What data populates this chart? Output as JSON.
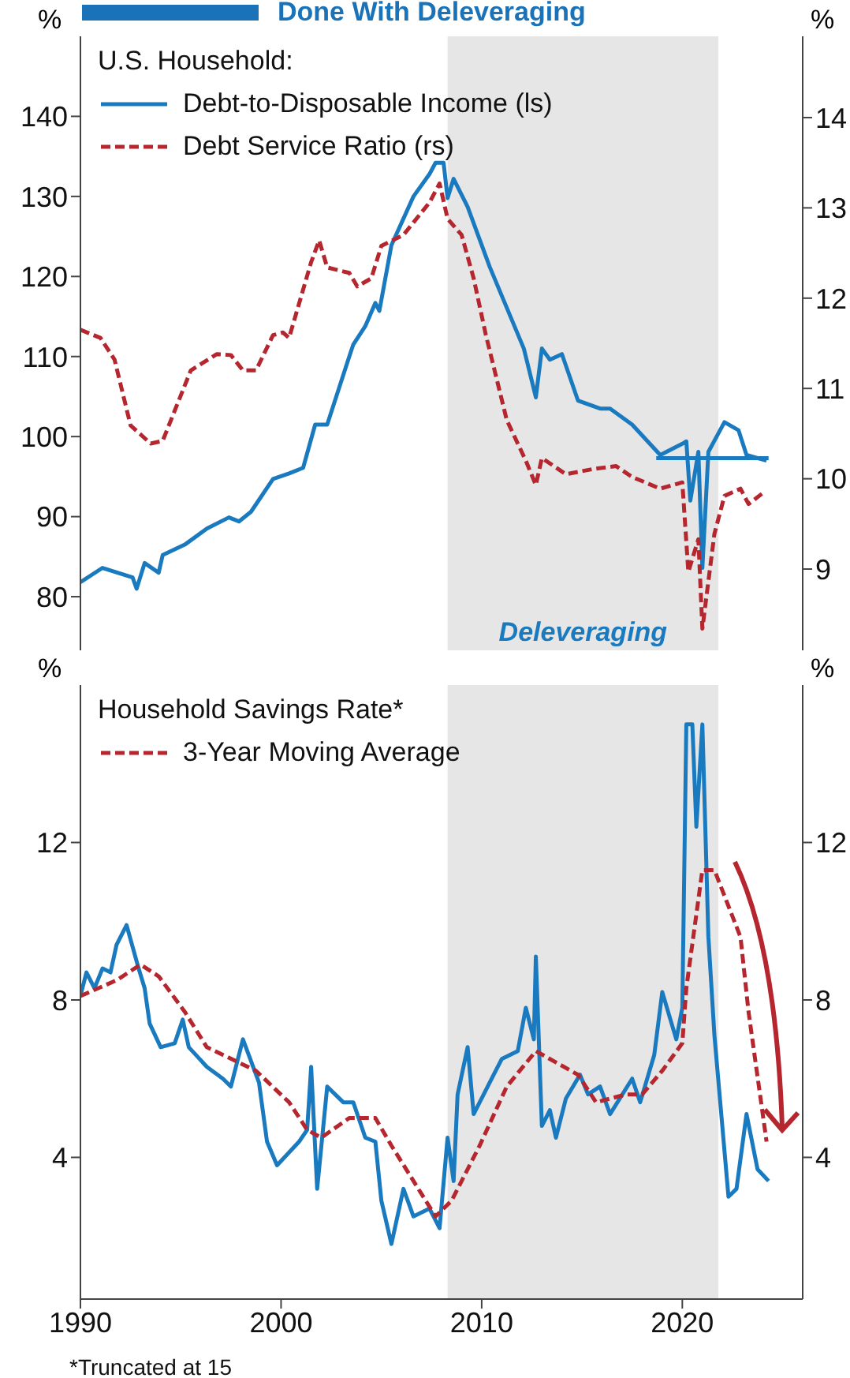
{
  "chart_data": [
    {
      "type": "line",
      "title": "Done With Deleveraging",
      "ylabel": "%",
      "y2label": "%",
      "legend_title": "U.S. Household:",
      "legend": "top left",
      "marker": "none",
      "tick_labels": "y",
      "xlim": [
        1990,
        2026
      ],
      "ylim": [
        73.3,
        150
      ],
      "yticks": [
        80,
        90,
        100,
        110,
        120,
        130,
        140
      ],
      "y2lim": [
        8.1,
        14.9
      ],
      "y2ticks": [
        9,
        10,
        11,
        12,
        13,
        14
      ],
      "bands": [
        {
          "axis": "x",
          "from": 2008.3,
          "to": 2021.8,
          "label": "Deleveraging",
          "color": "#e6e6e6"
        }
      ],
      "series": [
        {
          "name": "Debt-to-Disposable Income (ls)",
          "color": "#1a7abf",
          "line_style": "solid",
          "x": [
            1990,
            1991.1,
            1992.6,
            1992.8,
            1993.2,
            1993.9,
            1994.1,
            1995.2,
            1996.3,
            1997.4,
            1997.9,
            1998.5,
            1999.6,
            2000.4,
            2001.1,
            2001.7,
            2002.3,
            2003.4,
            2003.6,
            2004.2,
            2004.7,
            2004.9,
            2005.5,
            2006.6,
            2007.4,
            2007.7,
            2008.1,
            2008.3,
            2008.6,
            2009.3,
            2010.4,
            2012.1,
            2012.7,
            2013,
            2013.4,
            2014,
            2014.8,
            2015.9,
            2016.4,
            2017.5,
            2018.9,
            2020,
            2020.2,
            2020.4,
            2020.8,
            2021,
            2021.3,
            2022.1,
            2022.8,
            2023.2,
            2024.2
          ],
          "values": [
            81.8,
            83.6,
            82.4,
            81,
            84.2,
            83,
            85.2,
            86.5,
            88.5,
            89.9,
            89.4,
            90.6,
            94.7,
            95.4,
            96.1,
            101.5,
            101.5,
            110,
            111.5,
            113.8,
            116.7,
            115.7,
            123.9,
            130,
            132.8,
            134.2,
            134.2,
            129.8,
            132.2,
            128.7,
            121.2,
            111,
            104.9,
            111,
            109.6,
            110.3,
            104.5,
            103.5,
            103.5,
            101.5,
            97.7,
            99.1,
            99.4,
            92,
            98.1,
            83.6,
            98.1,
            101.8,
            100.8,
            97.7,
            97
          ]
        },
        {
          "color": "#1a7abf",
          "line_style": "solid",
          "x": [
            2018.7,
            2024.3
          ],
          "values": [
            97.3,
            97.3
          ]
        },
        {
          "name": "Debt Service Ratio (rs)",
          "color": "#b5262e",
          "line_style": "dashed",
          "axis": "y2",
          "x": [
            1990,
            1991,
            1991.7,
            1992.5,
            1993.5,
            1994.1,
            1995.5,
            1996.8,
            1997.5,
            1998.1,
            1998.75,
            1999.6,
            2000.1,
            2000.4,
            2001.5,
            2001.9,
            2002.3,
            2003.4,
            2003.8,
            2004.5,
            2005,
            2006.1,
            2007.4,
            2007.9,
            2008.3,
            2009,
            2009.6,
            2010.2,
            2011.25,
            2012.2,
            2012.7,
            2013,
            2014.2,
            2015.6,
            2016.7,
            2017.5,
            2018.9,
            2020,
            2020.3,
            2020.8,
            2021,
            2021.6,
            2022.1,
            2022.9,
            2023.3,
            2024
          ],
          "values": [
            11.65,
            11.56,
            11.32,
            10.59,
            10.39,
            10.42,
            11.2,
            11.38,
            11.37,
            11.2,
            11.2,
            11.59,
            11.62,
            11.56,
            12.4,
            12.64,
            12.34,
            12.28,
            12.13,
            12.22,
            12.58,
            12.7,
            13.06,
            13.27,
            12.88,
            12.7,
            12.22,
            11.6,
            10.65,
            10.2,
            9.93,
            10.23,
            10.05,
            10.11,
            10.14,
            10.02,
            9.89,
            9.96,
            8.97,
            9.33,
            8.34,
            9.39,
            9.81,
            9.89,
            9.72,
            9.84
          ]
        }
      ]
    },
    {
      "type": "line",
      "ylabel": "%",
      "y2label": "%",
      "legend_title": "Household Savings Rate*",
      "legend": "top left",
      "marker": "none",
      "xlim": [
        1990,
        2026
      ],
      "xticks": [
        1990,
        2000,
        2010,
        2020
      ],
      "ylim": [
        0.4,
        16
      ],
      "yticks": [
        4,
        8,
        12
      ],
      "y2lim": [
        0.4,
        16
      ],
      "y2ticks": [
        4,
        8,
        12
      ],
      "bands": [
        {
          "axis": "x",
          "from": 2008.3,
          "to": 2021.8,
          "color": "#e6e6e6"
        }
      ],
      "annotations": [
        "*Truncated at 15"
      ],
      "series": [
        {
          "color": "#1a7abf",
          "line_style": "solid",
          "x": [
            1990,
            1990.3,
            1990.7,
            1991.1,
            1991.5,
            1991.8,
            1992.3,
            1992.9,
            1993.2,
            1993.45,
            1994,
            1994.7,
            1995.1,
            1995.4,
            1996.3,
            1997.1,
            1997.5,
            1998.1,
            1998.9,
            1999.3,
            1999.8,
            2000.9,
            2001.3,
            2001.5,
            2001.8,
            2002.3,
            2003.1,
            2003.6,
            2004.2,
            2004.7,
            2005,
            2005.5,
            2006.1,
            2006.6,
            2007.4,
            2007.9,
            2008.3,
            2008.6,
            2008.8,
            2009.3,
            2009.6,
            2010.3,
            2010.6,
            2011,
            2011.8,
            2012.2,
            2012.6,
            2012.7,
            2013,
            2013.4,
            2013.7,
            2014.2,
            2014.9,
            2015.3,
            2015.9,
            2016.4,
            2017.5,
            2017.9,
            2018.6,
            2019,
            2019.7,
            2020,
            2020.2,
            2020.5,
            2020.7,
            2021,
            2021.3,
            2021.6,
            2022.3,
            2022.7,
            2023.2,
            2023.75,
            2024.3
          ],
          "values": [
            8.1,
            8.7,
            8.3,
            8.8,
            8.7,
            9.4,
            9.9,
            8.8,
            8.3,
            7.4,
            6.8,
            6.9,
            7.5,
            6.8,
            6.3,
            6,
            5.8,
            7,
            5.9,
            4.4,
            3.8,
            4.4,
            4.7,
            6.3,
            3.2,
            5.8,
            5.4,
            5.4,
            4.5,
            4.4,
            2.9,
            1.8,
            3.2,
            2.5,
            2.7,
            2.2,
            4.5,
            3.4,
            5.6,
            6.8,
            5.1,
            5.8,
            6.1,
            6.5,
            6.7,
            7.8,
            7,
            9.1,
            4.8,
            5.2,
            4.5,
            5.5,
            6.1,
            5.6,
            5.8,
            5.1,
            6,
            5.4,
            6.6,
            8.2,
            7,
            7.8,
            15,
            15,
            12.4,
            15,
            9.6,
            7.1,
            3,
            3.2,
            5.1,
            3.7,
            3.4
          ]
        },
        {
          "name": "3-Year Moving Average",
          "color": "#b5262e",
          "line_style": "dashed",
          "x": [
            1990,
            1990.9,
            1991.8,
            1993,
            1993.9,
            1995.2,
            1996.3,
            1998.75,
            2000.4,
            2001.3,
            2002,
            2003.4,
            2004.7,
            2005.5,
            2007.7,
            2008.5,
            2009.9,
            2011.25,
            2012.7,
            2014.8,
            2015.7,
            2017.2,
            2018,
            2019,
            2020,
            2020.2,
            2021,
            2021.6,
            2022.9,
            2023.3,
            2023.9,
            2024.2
          ],
          "values": [
            8.1,
            8.3,
            8.5,
            8.9,
            8.6,
            7.7,
            6.8,
            6.2,
            5.4,
            4.7,
            4.5,
            5,
            5,
            4.3,
            2.5,
            2.9,
            4.3,
            5.8,
            6.7,
            6.1,
            5.4,
            5.6,
            5.6,
            6.2,
            6.9,
            8.3,
            11.3,
            11.3,
            9.6,
            7.7,
            5.5,
            4.4
          ]
        }
      ]
    }
  ]
}
